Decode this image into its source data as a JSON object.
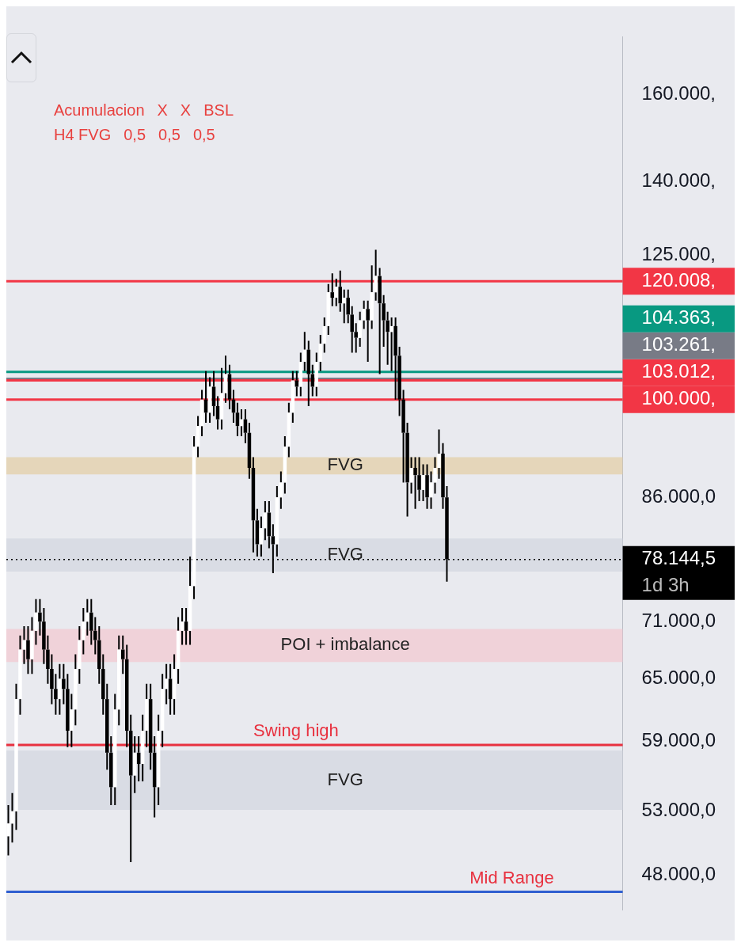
{
  "chart_data": {
    "type": "candlestick",
    "color": "#000000",
    "log": "y",
    "grid": false,
    "legend": false,
    "categories": [
      null,
      null,
      null,
      null,
      null,
      null,
      null,
      null,
      null,
      null,
      null,
      null,
      null,
      null,
      null,
      null,
      null,
      null,
      null,
      null,
      null,
      null,
      null,
      null,
      null,
      null,
      null,
      null,
      null,
      null,
      null,
      null,
      null,
      null,
      null,
      null,
      null,
      null,
      null,
      null,
      null,
      null,
      null,
      null,
      null,
      null,
      null,
      null,
      null,
      null,
      null,
      null,
      null,
      null,
      null,
      null,
      null,
      null,
      null,
      null,
      null,
      null,
      null,
      null,
      null,
      null,
      null,
      null,
      null,
      null,
      null,
      null,
      null,
      null,
      null,
      null,
      null,
      null,
      null,
      null,
      null,
      null,
      null,
      null,
      null,
      null,
      null,
      null,
      null,
      null,
      null,
      null,
      null,
      null,
      null,
      null,
      null,
      null,
      null,
      null,
      null,
      null,
      null,
      null,
      null,
      null,
      null,
      null,
      null,
      null,
      null,
      null,
      null,
      null,
      null,
      null,
      null,
      null,
      null,
      null,
      null,
      null,
      null,
      null,
      null,
      null,
      null,
      null,
      null,
      null,
      null,
      null,
      null,
      null,
      null,
      null,
      null,
      null,
      null,
      null,
      null,
      null,
      null,
      null,
      null,
      null,
      null,
      null,
      null,
      null,
      null,
      null,
      null,
      null,
      null,
      null
    ],
    "ohlc": [
      [
        51000,
        53500,
        49500,
        52000
      ],
      [
        52000,
        54500,
        50500,
        53000
      ],
      [
        53000,
        64500,
        51500,
        63000
      ],
      [
        63000,
        69500,
        61500,
        68000
      ],
      [
        68000,
        70500,
        66500,
        69000
      ],
      [
        69000,
        70500,
        65500,
        67000
      ],
      [
        67000,
        71500,
        65500,
        70000
      ],
      [
        70000,
        73500,
        68500,
        72000
      ],
      [
        72000,
        73500,
        69500,
        71000
      ],
      [
        71000,
        72500,
        66500,
        68000
      ],
      [
        68000,
        69500,
        64500,
        66000
      ],
      [
        66000,
        67500,
        62500,
        64000
      ],
      [
        64000,
        65500,
        61500,
        63000
      ],
      [
        63000,
        66500,
        61500,
        65000
      ],
      [
        65000,
        66500,
        62500,
        64000
      ],
      [
        64000,
        65500,
        58500,
        60000
      ],
      [
        60000,
        63500,
        58500,
        62000
      ],
      [
        62000,
        67500,
        60500,
        66000
      ],
      [
        66000,
        70500,
        64500,
        69000
      ],
      [
        69000,
        72500,
        67500,
        71000
      ],
      [
        71000,
        73500,
        69500,
        72000
      ],
      [
        72000,
        73500,
        68500,
        70000
      ],
      [
        70000,
        71500,
        67500,
        69000
      ],
      [
        69000,
        70500,
        64500,
        66000
      ],
      [
        66000,
        67500,
        61500,
        63000
      ],
      [
        63000,
        64500,
        56500,
        58000
      ],
      [
        58000,
        59500,
        53500,
        55000
      ],
      [
        55000,
        63500,
        53500,
        62000
      ],
      [
        62000,
        69500,
        60500,
        68000
      ],
      [
        68000,
        69500,
        65500,
        67000
      ],
      [
        67000,
        68500,
        58500,
        60000
      ],
      [
        60000,
        61500,
        49000,
        56000
      ],
      [
        56000,
        59500,
        54500,
        58000
      ],
      [
        58000,
        59500,
        55500,
        57000
      ],
      [
        57000,
        61500,
        55500,
        60000
      ],
      [
        60000,
        64500,
        58500,
        63000
      ],
      [
        63000,
        64500,
        56500,
        58000
      ],
      [
        58000,
        59500,
        52500,
        55000
      ],
      [
        55000,
        61500,
        53500,
        60000
      ],
      [
        60000,
        65500,
        58500,
        64000
      ],
      [
        64000,
        66500,
        62500,
        65000
      ],
      [
        65000,
        66500,
        61500,
        63000
      ],
      [
        63000,
        67500,
        61500,
        66000
      ],
      [
        66000,
        71500,
        64500,
        70000
      ],
      [
        70000,
        72500,
        68500,
        71000
      ],
      [
        71000,
        72500,
        68500,
        70000
      ],
      [
        70000,
        78500,
        68500,
        75000
      ],
      [
        75000,
        94500,
        73500,
        93000
      ],
      [
        93000,
        97500,
        91500,
        96000
      ],
      [
        96000,
        101500,
        94500,
        100000
      ],
      [
        100000,
        104500,
        96500,
        98000
      ],
      [
        98000,
        103500,
        96500,
        102000
      ],
      [
        102000,
        104500,
        97500,
        99000
      ],
      [
        99000,
        100500,
        95500,
        97000
      ],
      [
        97000,
        105000,
        95500,
        101000
      ],
      [
        101000,
        107000,
        99500,
        104000
      ],
      [
        104000,
        105500,
        98500,
        100000
      ],
      [
        100000,
        101500,
        96500,
        98000
      ],
      [
        98000,
        99500,
        94500,
        96000
      ],
      [
        96000,
        98500,
        94500,
        97000
      ],
      [
        97000,
        98500,
        93500,
        95000
      ],
      [
        95000,
        96500,
        88500,
        90000
      ],
      [
        90000,
        91500,
        79000,
        83000
      ],
      [
        83000,
        84500,
        78500,
        80000
      ],
      [
        80000,
        83500,
        78500,
        82000
      ],
      [
        82000,
        85500,
        80500,
        84000
      ],
      [
        84000,
        85500,
        79500,
        81000
      ],
      [
        81000,
        82500,
        76500,
        80000
      ],
      [
        80000,
        87500,
        78500,
        86000
      ],
      [
        86000,
        89500,
        84500,
        88000
      ],
      [
        88000,
        94500,
        86500,
        93000
      ],
      [
        93000,
        99500,
        91500,
        98000
      ],
      [
        98000,
        104500,
        96500,
        103000
      ],
      [
        103000,
        104500,
        100500,
        102000
      ],
      [
        102000,
        107500,
        100500,
        106000
      ],
      [
        106000,
        111000,
        104500,
        108000
      ],
      [
        108000,
        109500,
        99000,
        104000
      ],
      [
        104000,
        105500,
        100500,
        102000
      ],
      [
        102000,
        107500,
        100500,
        106000
      ],
      [
        106000,
        110500,
        104500,
        109000
      ],
      [
        109000,
        113500,
        107500,
        112000
      ],
      [
        112000,
        119500,
        110500,
        118000
      ],
      [
        118000,
        121500,
        115500,
        117000
      ],
      [
        117000,
        120500,
        115500,
        119000
      ],
      [
        119000,
        122000,
        114500,
        116000
      ],
      [
        116000,
        118500,
        112500,
        117000
      ],
      [
        117000,
        118500,
        112500,
        114000
      ],
      [
        114000,
        115500,
        107500,
        111000
      ],
      [
        111000,
        112500,
        107500,
        110000
      ],
      [
        110000,
        114500,
        108500,
        113000
      ],
      [
        113000,
        116500,
        111500,
        115000
      ],
      [
        115000,
        116500,
        106000,
        113000
      ],
      [
        113000,
        123000,
        111500,
        118000
      ],
      [
        118000,
        126000,
        116500,
        121000
      ],
      [
        121000,
        122500,
        104000,
        116000
      ],
      [
        116000,
        117500,
        108500,
        113000
      ],
      [
        113000,
        114500,
        105500,
        111000
      ],
      [
        111000,
        113500,
        104500,
        112000
      ],
      [
        112000,
        113500,
        100000,
        107000
      ],
      [
        107000,
        108500,
        97500,
        100000
      ],
      [
        100000,
        101500,
        88000,
        95000
      ],
      [
        95000,
        96500,
        83500,
        88000
      ],
      [
        88000,
        91500,
        86500,
        90000
      ],
      [
        90000,
        91500,
        84500,
        89000
      ],
      [
        89000,
        91500,
        85500,
        87000
      ],
      [
        87000,
        90500,
        85500,
        89000
      ],
      [
        89000,
        90500,
        84500,
        86000
      ],
      [
        86000,
        89500,
        84500,
        88000
      ],
      [
        88000,
        91500,
        86500,
        90000
      ],
      [
        90000,
        95500,
        88500,
        92000
      ],
      [
        92000,
        93500,
        84500,
        86000
      ],
      [
        86000,
        87500,
        75500,
        78144.5
      ],
      null,
      null,
      null,
      null,
      null,
      null,
      null,
      null,
      null,
      null,
      null,
      null,
      null,
      null,
      null,
      null,
      null,
      null,
      null,
      null,
      null,
      null,
      null,
      null,
      null,
      null,
      null,
      null,
      null,
      null,
      null,
      null,
      null,
      null,
      null,
      null,
      null,
      null,
      null,
      null,
      null,
      null,
      null,
      null
    ],
    "colors": [
      "#ffffff",
      "#ffffff",
      "#ffffff",
      "#ffffff",
      "#ffffff",
      "#000000",
      "#ffffff",
      "#ffffff",
      "#000000",
      "#000000",
      "#000000",
      "#000000",
      "#000000",
      "#ffffff",
      "#000000",
      "#000000",
      "#ffffff",
      "#ffffff",
      "#ffffff",
      "#ffffff",
      "#ffffff",
      "#000000",
      "#000000",
      "#000000",
      "#000000",
      "#000000",
      "#000000",
      "#ffffff",
      "#ffffff",
      "#000000",
      "#000000",
      "#000000",
      "#ffffff",
      "#000000",
      "#ffffff",
      "#ffffff",
      "#000000",
      "#000000",
      "#ffffff",
      "#ffffff",
      "#ffffff",
      "#000000",
      "#ffffff",
      "#ffffff",
      "#ffffff",
      "#000000",
      "#ffffff",
      "#ffffff",
      "#ffffff",
      "#ffffff",
      "#000000",
      "#ffffff",
      "#000000",
      "#000000",
      "#ffffff",
      "#ffffff",
      "#000000",
      "#000000",
      "#000000",
      "#ffffff",
      "#000000",
      "#000000",
      "#000000",
      "#000000",
      "#ffffff",
      "#ffffff",
      "#000000",
      "#000000",
      "#ffffff",
      "#ffffff",
      "#ffffff",
      "#ffffff",
      "#ffffff",
      "#000000",
      "#ffffff",
      "#ffffff",
      "#000000",
      "#000000",
      "#ffffff",
      "#ffffff",
      "#ffffff",
      "#ffffff",
      "#000000",
      "#ffffff",
      "#000000",
      "#ffffff",
      "#000000",
      "#000000",
      "#000000",
      "#ffffff",
      "#ffffff",
      "#000000",
      "#ffffff",
      "#ffffff",
      "#000000",
      "#000000",
      "#000000",
      "#ffffff",
      "#000000",
      "#000000",
      "#000000",
      "#000000",
      "#ffffff",
      "#000000",
      "#000000",
      "#ffffff",
      "#000000",
      "#ffffff",
      "#ffffff",
      "#ffffff",
      "#000000",
      "#000000",
      null,
      null,
      null,
      null,
      null,
      null,
      null,
      null,
      null,
      null,
      null,
      null,
      null,
      null,
      null,
      null,
      null,
      null,
      null,
      null,
      null,
      null,
      null,
      null,
      null,
      null,
      null,
      null,
      null,
      null,
      null,
      null,
      null,
      null,
      null,
      null,
      null,
      null,
      null,
      null,
      null,
      null,
      null,
      null
    ],
    "ylim": [
      45500,
      175000
    ],
    "yticks": [
      {
        "value": 160000,
        "label": "160.000,"
      },
      {
        "value": 140000,
        "label": "140.000,"
      },
      {
        "value": 125000,
        "label": "125.000,"
      },
      {
        "value": 86000,
        "label": "86.000,0"
      },
      {
        "value": 71000,
        "label": "71.000,0"
      },
      {
        "value": 65000,
        "label": "65.000,0"
      },
      {
        "value": 59000,
        "label": "59.000,0"
      },
      {
        "value": 53000,
        "label": "53.000,0"
      },
      {
        "value": 48000,
        "label": "48.000,0"
      }
    ],
    "ref_lines": [
      {
        "axis": "y",
        "value": 120008,
        "label": "120.008,",
        "color": "#f23645",
        "line_style": "solid"
      },
      {
        "axis": "y",
        "value": 104363,
        "label": "104.363,",
        "color": "#089981",
        "line_style": "solid"
      },
      {
        "axis": "y",
        "value": 103261,
        "label": "103.261,",
        "color": "#787b86",
        "line_style": "solid"
      },
      {
        "axis": "y",
        "value": 103012,
        "label": "103.012,",
        "color": "#f23645",
        "line_style": "solid"
      },
      {
        "axis": "y",
        "value": 100000,
        "label": "100.000,",
        "color": "#f23645",
        "line_style": "solid"
      },
      {
        "axis": "y",
        "value": 78144.5,
        "label": "78.144,5\n1d 3h",
        "color": "#000000",
        "line_style": "dotted"
      },
      {
        "axis": "y",
        "value": 58700,
        "color": "#e8313f",
        "line_style": "solid"
      },
      {
        "axis": "y",
        "value": 46800,
        "color": "#2f5fd0",
        "line_style": "solid"
      }
    ],
    "bands": [
      {
        "axis": "y",
        "from": 66700,
        "to": 70200,
        "label": "POI + imbalance",
        "color": "#f2c9d2"
      },
      {
        "axis": "y",
        "from": 76700,
        "to": 80700,
        "label": "FVG",
        "color": "#d3d7e0"
      },
      {
        "axis": "y",
        "from": 53100,
        "to": 58200,
        "label": "FVG",
        "color": "#d3d7e0"
      },
      {
        "axis": "y",
        "from": 89100,
        "to": 91500,
        "label": "FVG",
        "color": "#e3cfa8"
      }
    ],
    "annotations": [
      "Acumulacion",
      {
        "text": "Swing high",
        "y": 58700
      },
      {
        "text": "Mid Range",
        "y": 46800
      },
      "X",
      "X",
      "BSL",
      "H4 FVG",
      "0,5",
      "0,5",
      "0,5"
    ]
  }
}
